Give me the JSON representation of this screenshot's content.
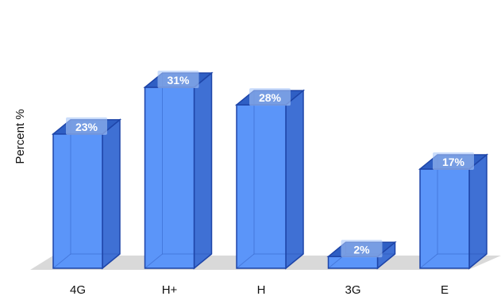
{
  "chart_data": {
    "type": "bar",
    "categories": [
      "4G",
      "H+",
      "H",
      "3G",
      "E"
    ],
    "values": [
      23,
      31,
      28,
      2,
      17
    ],
    "data_labels": [
      "23%",
      "31%",
      "28%",
      "2%",
      "17%"
    ],
    "title": "",
    "xlabel": "",
    "ylabel": "Percent %",
    "ylim": [
      0,
      31
    ],
    "grid": false,
    "legend": "none",
    "style": "3d",
    "colors": {
      "bar_front": "#5b95f9",
      "bar_side": "#3f70d4",
      "bar_top": "#2f5fc4",
      "bar_edge": "#1e45a8",
      "floor": "#d9d9d9",
      "label_box": "#a9c6f8"
    }
  }
}
